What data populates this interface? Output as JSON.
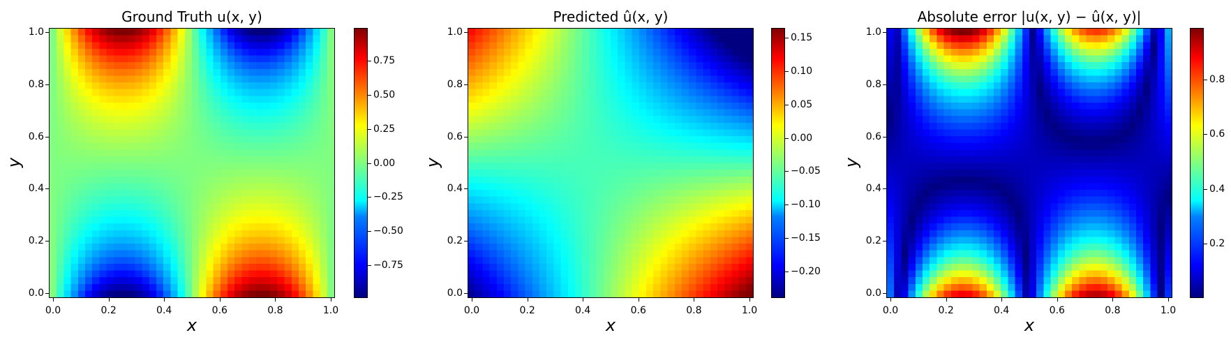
{
  "chart_data": [
    {
      "type": "heatmap",
      "title": "Ground Truth u(x, y)",
      "xlabel": "x",
      "ylabel": "y",
      "xlim": [
        0,
        1
      ],
      "ylim": [
        0,
        1
      ],
      "x_ticks": [
        "0.0",
        "0.2",
        "0.4",
        "0.6",
        "0.8",
        "1.0"
      ],
      "y_ticks": [
        "0.0",
        "0.2",
        "0.4",
        "0.6",
        "0.8",
        "1.0"
      ],
      "colormap": "jet",
      "grid_resolution": 40,
      "field": "sin(2*pi*x) * (y^4 - (1-y)^4)",
      "colorbar": {
        "range": [
          -0.99,
          0.99
        ],
        "ticks": [
          -0.75,
          -0.5,
          -0.25,
          0.0,
          0.25,
          0.5,
          0.75
        ],
        "tick_labels": [
          "−0.75",
          "−0.50",
          "−0.25",
          "0.00",
          "0.25",
          "0.50",
          "0.75"
        ]
      }
    },
    {
      "type": "heatmap",
      "title": "Predicted û(x, y)",
      "xlabel": "x",
      "ylabel": "y",
      "xlim": [
        0,
        1
      ],
      "ylim": [
        0,
        1
      ],
      "x_ticks": [
        "0.0",
        "0.2",
        "0.4",
        "0.6",
        "0.8",
        "1.0"
      ],
      "y_ticks": [
        "0.0",
        "0.2",
        "0.4",
        "0.6",
        "0.8",
        "1.0"
      ],
      "colormap": "jet",
      "grid_resolution": 40,
      "field": "0.2*(x-0.5)*(0.5-y)*4 - 0.03 - 0.06*y",
      "colorbar": {
        "range": [
          -0.24,
          0.165
        ],
        "ticks": [
          -0.2,
          -0.15,
          -0.1,
          -0.05,
          0.0,
          0.05,
          0.1,
          0.15
        ],
        "tick_labels": [
          "−0.20",
          "−0.15",
          "−0.10",
          "−0.05",
          "0.00",
          "0.05",
          "0.10",
          "0.15"
        ]
      }
    },
    {
      "type": "heatmap",
      "title": "Absolute error |u(x, y) − û(x, y)|",
      "xlabel": "x",
      "ylabel": "y",
      "xlim": [
        0,
        1
      ],
      "ylim": [
        0,
        1
      ],
      "x_ticks": [
        "0.0",
        "0.2",
        "0.4",
        "0.6",
        "0.8",
        "1.0"
      ],
      "y_ticks": [
        "0.0",
        "0.2",
        "0.4",
        "0.6",
        "0.8",
        "1.0"
      ],
      "colormap": "jet",
      "grid_resolution": 40,
      "field": "abs(u - u_hat)",
      "colorbar": {
        "range": [
          0.0,
          0.99
        ],
        "ticks": [
          0.2,
          0.4,
          0.6,
          0.8
        ],
        "tick_labels": [
          "0.2",
          "0.4",
          "0.6",
          "0.8"
        ]
      }
    }
  ]
}
